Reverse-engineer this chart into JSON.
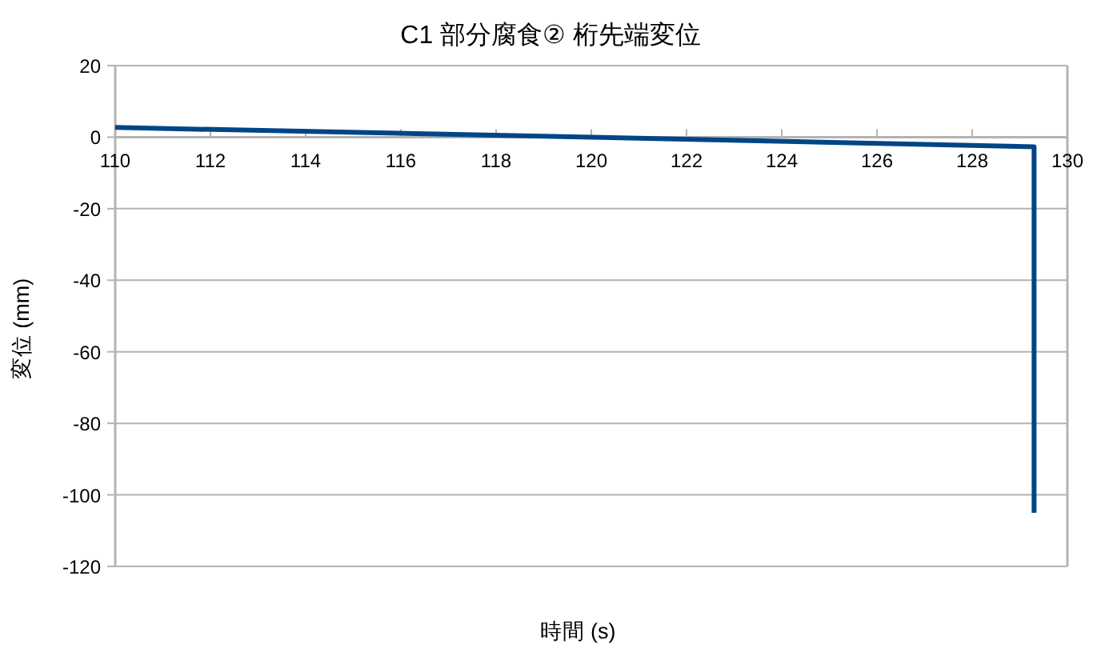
{
  "chart_data": {
    "type": "line",
    "title": "C1 部分腐食② 桁先端変位",
    "xlabel": "時間 (s)",
    "ylabel": "変位 (mm)",
    "x": [
      110,
      120,
      129.3,
      129.3
    ],
    "series": [
      {
        "color": "#004586",
        "values": [
          2.7,
          0,
          -2.7,
          -105
        ]
      }
    ],
    "xlim": [
      110,
      130
    ],
    "xticks": [
      110,
      112,
      114,
      116,
      118,
      120,
      122,
      124,
      126,
      128,
      130
    ],
    "ylim": [
      -120,
      20
    ],
    "yticks": [
      -120,
      -100,
      -80,
      -60,
      -40,
      -20,
      0,
      20
    ],
    "grid": "y",
    "line_style": "solid"
  }
}
